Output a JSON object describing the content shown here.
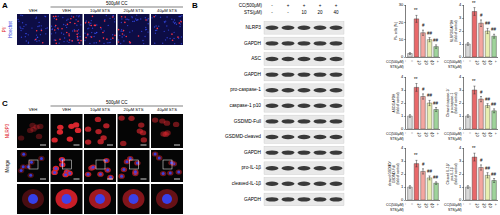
{
  "panel_A": {
    "label": "A",
    "group_label": "500μM CC",
    "columns": [
      "VEH",
      "VEH",
      "10μM STS",
      "20μM STS",
      "40μM STS"
    ],
    "row_label": [
      "PI/",
      "Hoechst"
    ]
  },
  "panel_B": {
    "label": "B",
    "header_rows": [
      {
        "label": "CC(500μM)",
        "values": [
          "-",
          "+",
          "+",
          "+",
          "+"
        ]
      },
      {
        "label": "STS(μM)",
        "values": [
          "-",
          "-",
          "10",
          "20",
          "40"
        ]
      }
    ],
    "bands": [
      "NLRP3",
      "GAPDH",
      "ASC",
      "GAPDH",
      "pro-caspase-1",
      "caspase-1 p10",
      "GSDMD-Full",
      "GSDMD-cleaved",
      "GAPDH",
      "pro-IL-1β",
      "cleaved-IL-1β",
      "GAPDH"
    ]
  },
  "panel_C": {
    "label": "C",
    "group_label": "500μM CC",
    "columns": [
      "VEH",
      "VEH",
      "10μM STS",
      "20μM STS",
      "40μM STS"
    ],
    "rows": [
      "NLRP3",
      "Merge"
    ]
  },
  "chart_data": [
    {
      "type": "bar",
      "y_title": [
        "PI+ cells (%)"
      ],
      "x_rows": [
        {
          "label": "CC(500μM)",
          "values": [
            "-",
            "+",
            "+",
            "+",
            "+"
          ]
        },
        {
          "label": "STS(μM)",
          "values": [
            "-",
            "-",
            "10",
            "20",
            "40"
          ]
        }
      ],
      "values": [
        2,
        22,
        14,
        10,
        6
      ],
      "errors": [
        0.5,
        2,
        1.5,
        1.2,
        1
      ],
      "marks": [
        null,
        "**",
        "#",
        "##",
        "##"
      ],
      "colors": [
        "#d9d9d9",
        "#e8686a",
        "#f4a6a0",
        "#e8eeb0",
        "#9fd39b"
      ],
      "ylim": [
        0,
        30
      ],
      "yticks": [
        0,
        10,
        20,
        30
      ]
    },
    {
      "type": "bar",
      "y_title": [
        "NLRP3/GAPDH",
        "(fold of control)"
      ],
      "x_rows": [
        {
          "label": "CC(500μM)",
          "values": [
            "-",
            "+",
            "+",
            "+",
            "+"
          ]
        },
        {
          "label": "STS(μM)",
          "values": [
            "-",
            "-",
            "10",
            "20",
            "40"
          ]
        }
      ],
      "values": [
        1,
        3.5,
        2.6,
        2.0,
        1.6
      ],
      "errors": [
        0.1,
        0.3,
        0.25,
        0.2,
        0.15
      ],
      "marks": [
        null,
        "**",
        "#",
        "##",
        "##"
      ],
      "colors": [
        "#d9d9d9",
        "#e8686a",
        "#f4a6a0",
        "#e8eeb0",
        "#9fd39b"
      ],
      "ylim": [
        0,
        4
      ],
      "yticks": [
        0,
        1,
        2,
        3,
        4
      ]
    },
    {
      "type": "bar",
      "y_title": [
        "ASC/GAPDH",
        "(fold of control)"
      ],
      "x_rows": [
        {
          "label": "CC(500μM)",
          "values": [
            "-",
            "+",
            "+",
            "+",
            "+"
          ]
        },
        {
          "label": "STS(μM)",
          "values": [
            "-",
            "-",
            "10",
            "20",
            "40"
          ]
        }
      ],
      "values": [
        1,
        3.2,
        2.5,
        2.0,
        1.5
      ],
      "errors": [
        0.1,
        0.3,
        0.2,
        0.2,
        0.15
      ],
      "marks": [
        null,
        "**",
        "#",
        "##",
        "##"
      ],
      "colors": [
        "#d9d9d9",
        "#e8686a",
        "#f4a6a0",
        "#e8eeb0",
        "#9fd39b"
      ],
      "ylim": [
        0,
        4
      ],
      "yticks": [
        0,
        1,
        2,
        3,
        4
      ]
    },
    {
      "type": "bar",
      "y_title": [
        "Cleaved caspase-1/",
        "pro-caspase-1",
        "(fold of control)"
      ],
      "x_rows": [
        {
          "label": "CC(500μM)",
          "values": [
            "-",
            "+",
            "+",
            "+",
            "+"
          ]
        },
        {
          "label": "STS(μM)",
          "values": [
            "-",
            "-",
            "10",
            "20",
            "40"
          ]
        }
      ],
      "values": [
        1,
        3.0,
        2.3,
        1.8,
        1.4
      ],
      "errors": [
        0.1,
        0.3,
        0.2,
        0.15,
        0.15
      ],
      "marks": [
        null,
        "**",
        "#",
        "##",
        "##"
      ],
      "colors": [
        "#d9d9d9",
        "#e8686a",
        "#f4a6a0",
        "#e8eeb0",
        "#9fd39b"
      ],
      "ylim": [
        0,
        4
      ],
      "yticks": [
        0,
        1,
        2,
        3,
        4
      ]
    },
    {
      "type": "bar",
      "y_title": [
        "cleaved GSDMD/",
        "GSDMD-Full",
        "(fold of control)"
      ],
      "x_rows": [
        {
          "label": "CC(500μM)",
          "values": [
            "-",
            "+",
            "+",
            "+",
            "+"
          ]
        },
        {
          "label": "STS(μM)",
          "values": [
            "-",
            "-",
            "10",
            "20",
            "40"
          ]
        }
      ],
      "values": [
        1,
        2.8,
        2.2,
        1.7,
        1.3
      ],
      "errors": [
        0.1,
        0.25,
        0.2,
        0.15,
        0.1
      ],
      "marks": [
        null,
        "**",
        "#",
        "##",
        "##"
      ],
      "colors": [
        "#d9d9d9",
        "#e8686a",
        "#f4a6a0",
        "#e8eeb0",
        "#9fd39b"
      ],
      "ylim": [
        0,
        4
      ],
      "yticks": [
        0,
        1,
        2,
        3,
        4
      ]
    },
    {
      "type": "bar",
      "y_title": [
        "Cleaved IL-1β/",
        "pro-IL-1β",
        "(fold of control)"
      ],
      "x_rows": [
        {
          "label": "CC(500μM)",
          "values": [
            "-",
            "+",
            "+",
            "+",
            "+"
          ]
        },
        {
          "label": "STS(μM)",
          "values": [
            "-",
            "-",
            "10",
            "20",
            "40"
          ]
        }
      ],
      "values": [
        1,
        3.3,
        2.5,
        1.9,
        1.5
      ],
      "errors": [
        0.1,
        0.3,
        0.2,
        0.2,
        0.15
      ],
      "marks": [
        null,
        "**",
        "#",
        "##",
        "##"
      ],
      "colors": [
        "#d9d9d9",
        "#e8686a",
        "#f4a6a0",
        "#e8eeb0",
        "#9fd39b"
      ],
      "ylim": [
        0,
        4
      ],
      "yticks": [
        0,
        1,
        2,
        3,
        4
      ]
    }
  ]
}
